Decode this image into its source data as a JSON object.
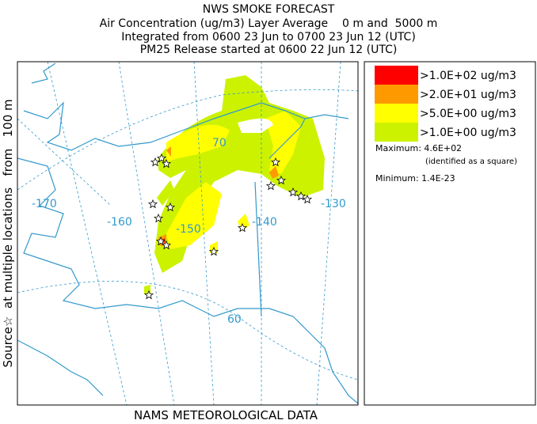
{
  "header": {
    "title": "NWS SMOKE FORECAST",
    "lines": [
      "Air Concentration (ug/m3) Layer Average    0 m and  5000 m",
      "Integrated from 0600 23 Jun to 0700 23 Jun 12 (UTC)",
      "PM25 Release started at 0600 22 Jun 12 (UTC)"
    ]
  },
  "side_label": "Source☆  at multiple locations   from   100 m",
  "map": {
    "longitude_labels": [
      "-170",
      "-160",
      "-150",
      "-140",
      "-130"
    ],
    "latitude_labels": [
      "70",
      "60"
    ]
  },
  "legend": {
    "items": [
      {
        "label": ">1.0E+02 ug/m3",
        "color": "#ff0000"
      },
      {
        "label": ">2.0E+01 ug/m3",
        "color": "#ff9900"
      },
      {
        "label": ">5.0E+00 ug/m3",
        "color": "#ffff00"
      },
      {
        "label": ">1.0E+00 ug/m3",
        "color": "#ccf200"
      }
    ],
    "maximum": "Maximum: 4.6E+02",
    "maximum_note": "(identified as a square)",
    "minimum": "Minimum: 1.4E-23"
  },
  "footer": "NAMS METEOROLOGICAL DATA"
}
